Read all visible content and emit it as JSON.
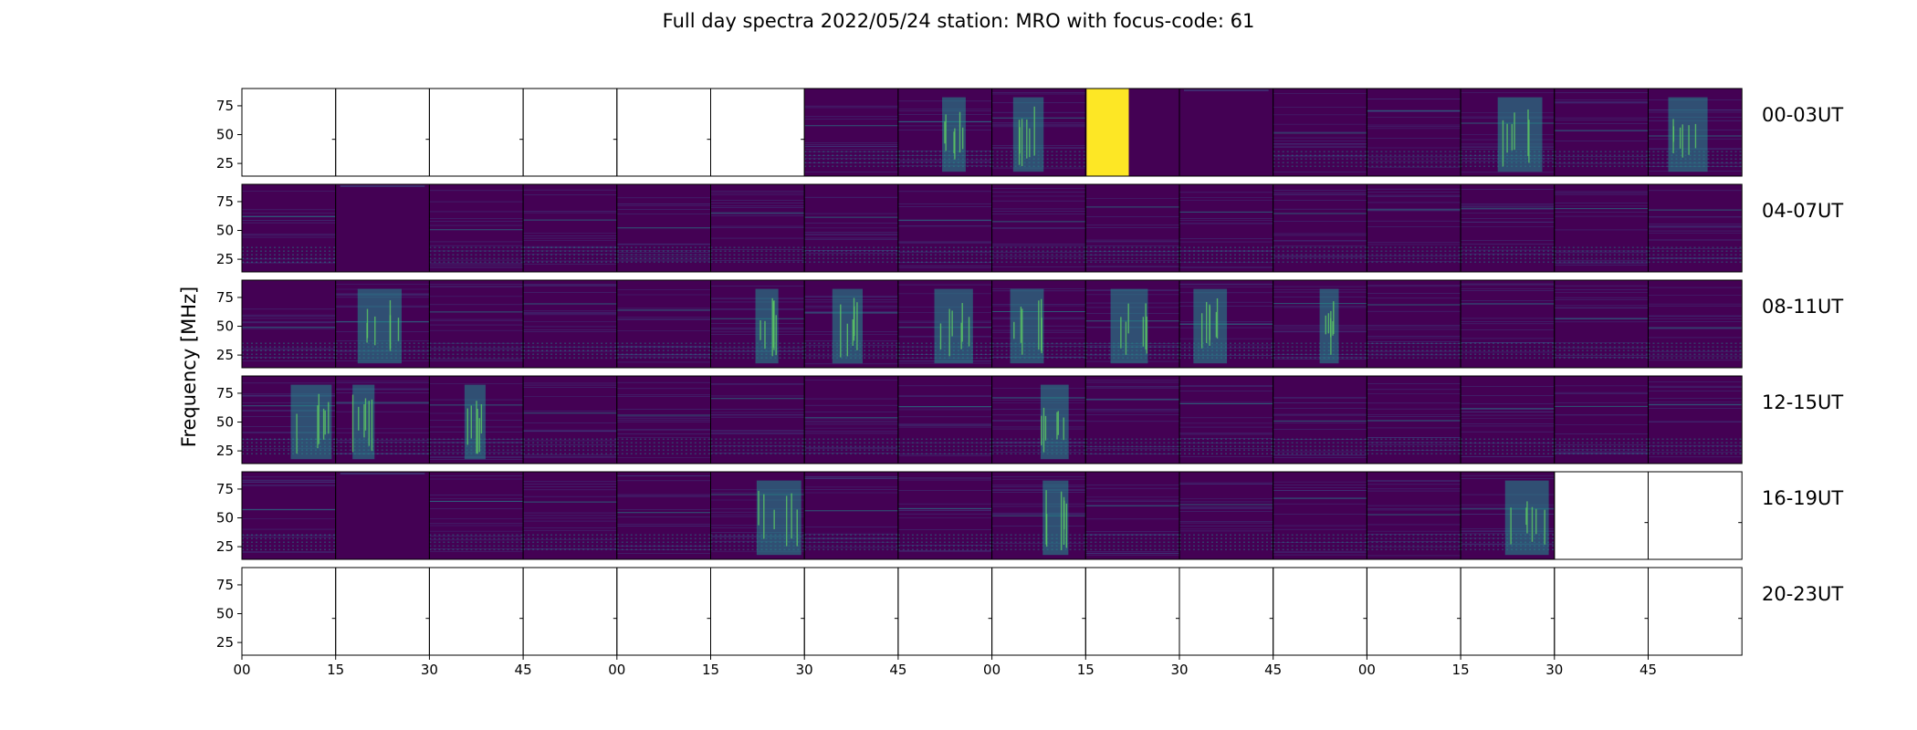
{
  "chart_data": {
    "type": "heatmap",
    "title": "Full day spectra 2022/05/24 station: MRO with focus-code: 61",
    "ylabel": "Frequency [MHz]",
    "xlabel": "",
    "y_ticks": [
      "25",
      "50",
      "75"
    ],
    "ylim_MHz": [
      14,
      90
    ],
    "x_ticks": [
      "00",
      "15",
      "30",
      "45",
      "00",
      "15",
      "30",
      "45",
      "00",
      "15",
      "30",
      "45",
      "00",
      "15",
      "30",
      "45"
    ],
    "panels_per_row": 16,
    "colormap": "viridis",
    "rows": [
      {
        "label": "00-03UT",
        "panels": [
          "empty",
          "empty",
          "empty",
          "empty",
          "empty",
          "empty",
          "normal",
          "burst",
          "burst",
          "saturated",
          "dark",
          "normal",
          "normal",
          "burst",
          "normal",
          "burst"
        ]
      },
      {
        "label": "04-07UT",
        "panels": [
          "normal",
          "dark",
          "normal",
          "normal",
          "normal",
          "normal",
          "normal",
          "normal",
          "normal",
          "normal",
          "normal",
          "normal",
          "normal",
          "normal",
          "normal",
          "normal"
        ]
      },
      {
        "label": "08-11UT",
        "panels": [
          "normal",
          "burst",
          "normal",
          "normal",
          "normal",
          "burst",
          "burst",
          "burst",
          "burst",
          "burst",
          "burst",
          "burst",
          "normal",
          "normal",
          "normal",
          "normal"
        ]
      },
      {
        "label": "12-15UT",
        "panels": [
          "burst",
          "burst",
          "burst",
          "normal",
          "normal",
          "normal",
          "normal",
          "normal",
          "burst",
          "normal",
          "normal",
          "normal",
          "normal",
          "normal",
          "normal",
          "normal"
        ]
      },
      {
        "label": "16-19UT",
        "panels": [
          "normal",
          "dark",
          "normal",
          "normal",
          "normal",
          "burst",
          "normal",
          "normal",
          "burst",
          "normal",
          "normal",
          "normal",
          "normal",
          "burst",
          "empty",
          "empty"
        ]
      },
      {
        "label": "20-23UT",
        "panels": [
          "empty",
          "empty",
          "empty",
          "empty",
          "empty",
          "empty",
          "empty",
          "empty",
          "empty",
          "empty",
          "empty",
          "empty",
          "empty",
          "empty",
          "empty",
          "empty"
        ]
      }
    ],
    "colors": {
      "viridis_dark": "#440154",
      "viridis_mid": "#3b528b",
      "viridis_teal": "#21908d",
      "viridis_green": "#5dc963",
      "viridis_yellow": "#fde725"
    }
  }
}
